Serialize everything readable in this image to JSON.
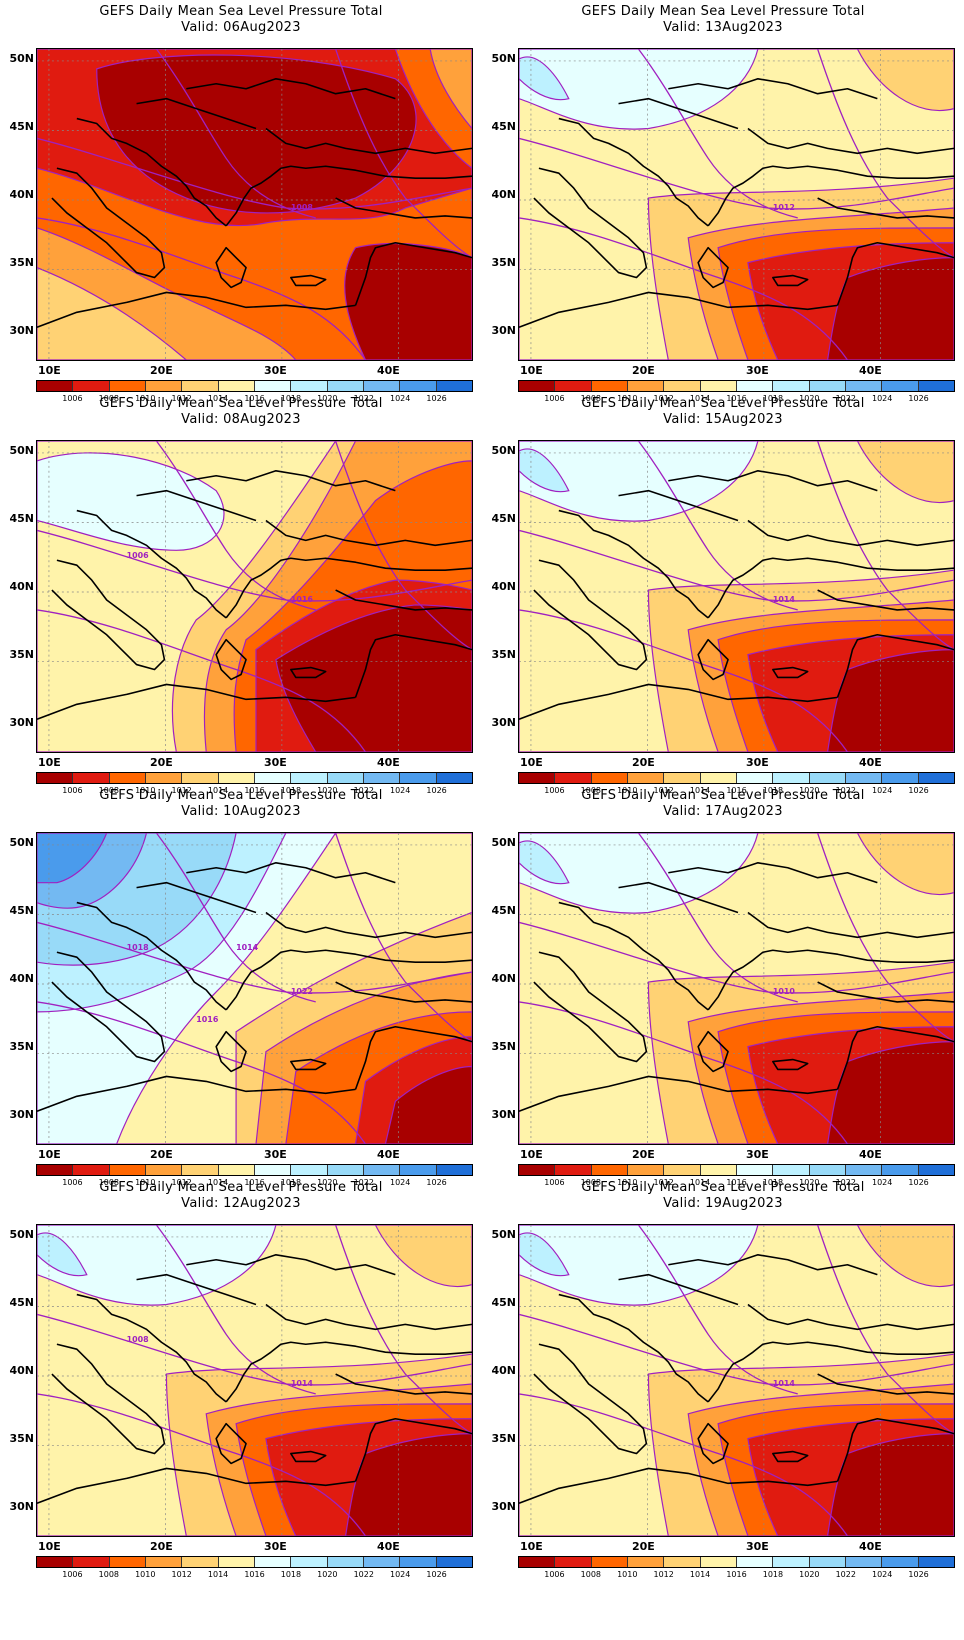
{
  "title_line1": "GEFS Daily Mean Sea Level Pressure Total",
  "lat_labels": [
    "50N",
    "45N",
    "40N",
    "35N",
    "30N"
  ],
  "lon_labels": [
    "10E",
    "20E",
    "30E",
    "40E"
  ],
  "colorbar": {
    "levels": [
      "1006",
      "1008",
      "1010",
      "1012",
      "1014",
      "1016",
      "1018",
      "1020",
      "1022",
      "1024",
      "1026"
    ],
    "colors": [
      "#a80000",
      "#e01b10",
      "#ff6600",
      "#ffa13b",
      "#ffd274",
      "#fff3aa",
      "#e6ffff",
      "#bdf1ff",
      "#98daf8",
      "#73b9f2",
      "#4a9bec",
      "#1f6fd8"
    ]
  },
  "panels": [
    {
      "valid": "Valid: 06Aug2023",
      "scheme": "low",
      "labels": [
        {
          "text": "1008"
        }
      ]
    },
    {
      "valid": "Valid: 13Aug2023",
      "scheme": "mid",
      "labels": [
        {
          "text": "1012"
        }
      ]
    },
    {
      "valid": "Valid: 08Aug2023",
      "scheme": "mid2",
      "labels": [
        {
          "text": "1016"
        },
        {
          "text": "1006"
        }
      ]
    },
    {
      "valid": "Valid: 15Aug2023",
      "scheme": "mid",
      "labels": [
        {
          "text": "1014"
        }
      ]
    },
    {
      "valid": "Valid: 10Aug2023",
      "scheme": "high",
      "labels": [
        {
          "text": "1022"
        },
        {
          "text": "1018"
        },
        {
          "text": "1014"
        },
        {
          "text": "1016"
        }
      ]
    },
    {
      "valid": "Valid: 17Aug2023",
      "scheme": "mid",
      "labels": [
        {
          "text": "1010"
        }
      ]
    },
    {
      "valid": "Valid: 12Aug2023",
      "scheme": "mid",
      "labels": [
        {
          "text": "1014"
        },
        {
          "text": "1008"
        }
      ]
    },
    {
      "valid": "Valid: 19Aug2023",
      "scheme": "mid",
      "labels": [
        {
          "text": "1014"
        }
      ]
    }
  ]
}
